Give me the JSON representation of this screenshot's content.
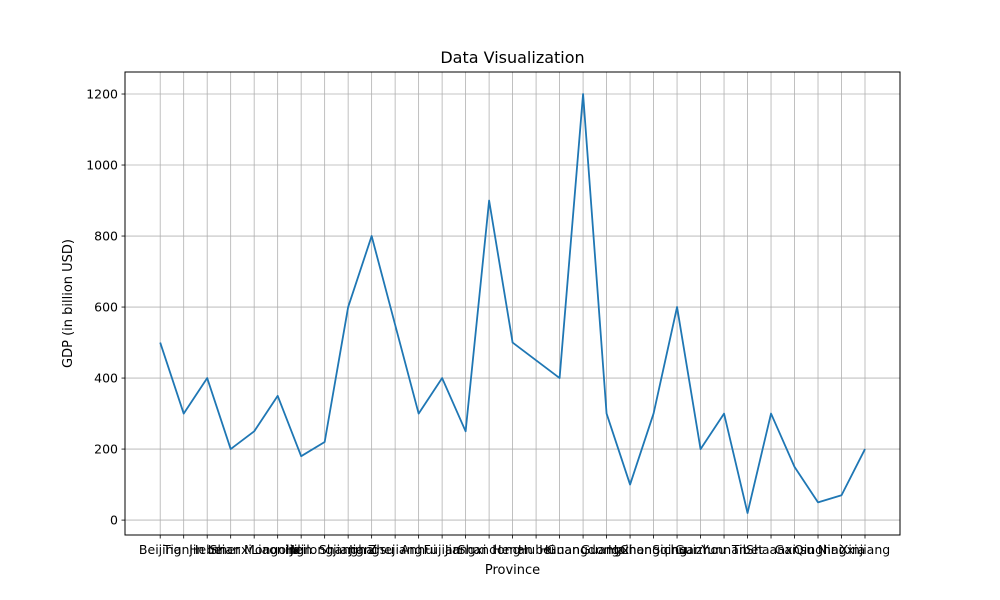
{
  "chart_data": {
    "type": "line",
    "title": "Data Visualization",
    "xlabel": "Province",
    "ylabel": "GDP (in billion USD)",
    "categories": [
      "Beijing",
      "Tianjin",
      "Hebei",
      "Shanxi",
      "Inner Mongolia",
      "Liaoning",
      "Jilin",
      "Heilongjiang",
      "Shanghai",
      "Jiangsu",
      "Zhejiang",
      "Anhui",
      "Fujian",
      "Jiangxi",
      "Shandong",
      "Henan",
      "Hubei",
      "Hunan",
      "Guangdong",
      "Guangxi",
      "Hainan",
      "Chongqing",
      "Sichuan",
      "Guizhou",
      "Yunnan",
      "Tibet",
      "Shaanxi",
      "Gansu",
      "Qinghai",
      "Ningxia",
      "Xinjiang"
    ],
    "series": [
      {
        "values": [
          500,
          300,
          400,
          200,
          250,
          350,
          180,
          220,
          600,
          800,
          550,
          300,
          400,
          250,
          900,
          500,
          450,
          400,
          1200,
          300,
          100,
          300,
          600,
          200,
          300,
          20,
          300,
          150,
          50,
          70,
          200
        ]
      }
    ],
    "yticks": [
      0,
      200,
      400,
      600,
      800,
      1000,
      1200
    ],
    "ylim": [
      -42,
      1262
    ],
    "grid": true,
    "line_color": "#1f77b4"
  }
}
